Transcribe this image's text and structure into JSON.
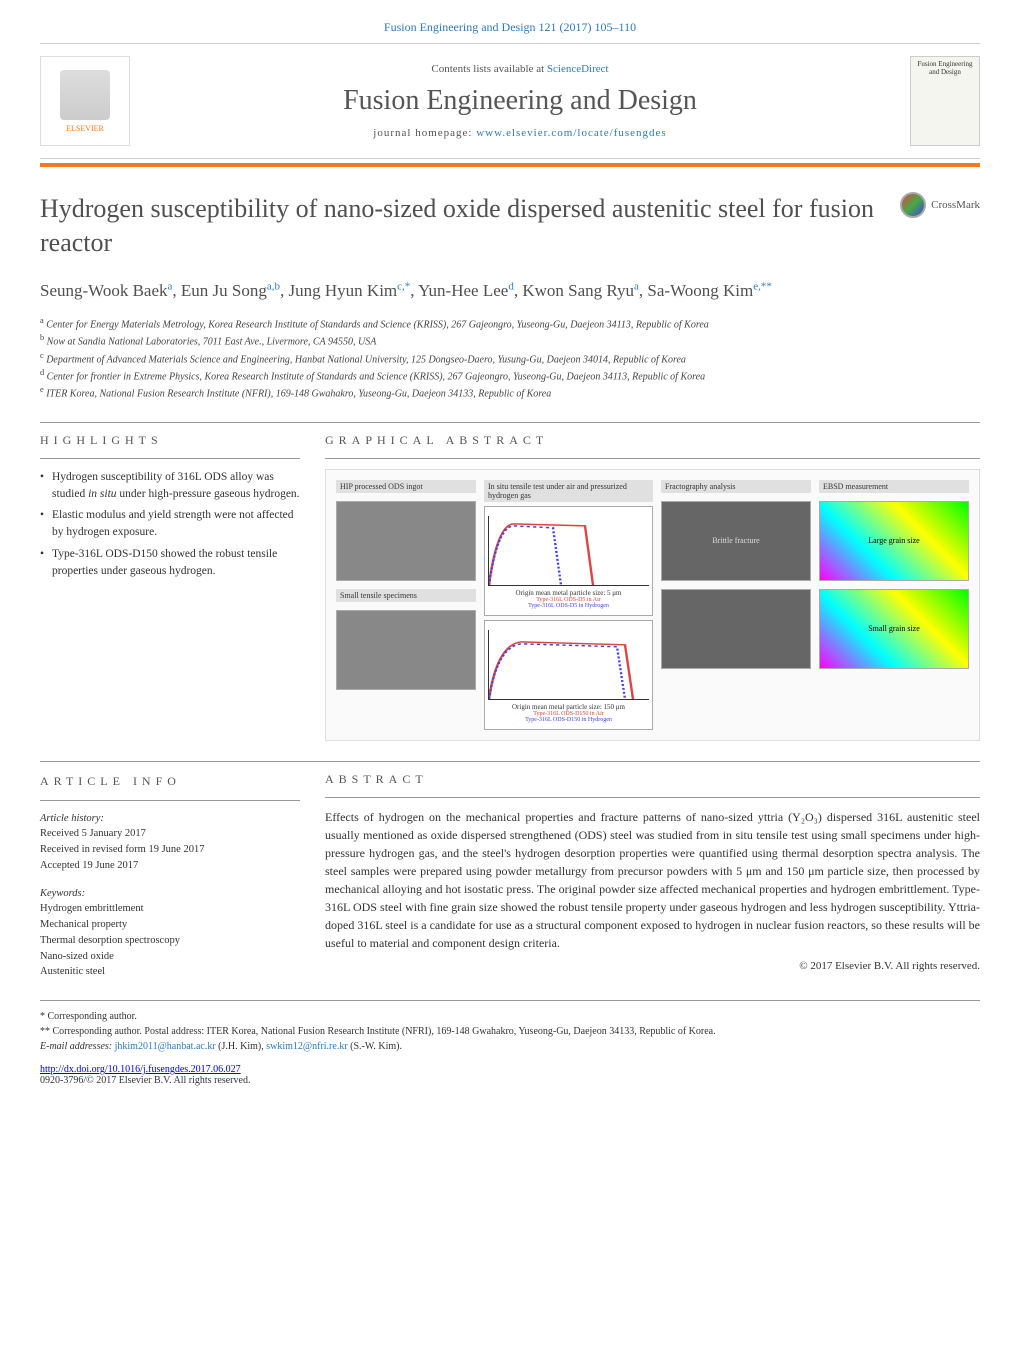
{
  "header": {
    "citation": "Fusion Engineering and Design 121 (2017) 105–110",
    "contents_text": "Contents lists available at ",
    "contents_link": "ScienceDirect",
    "journal_name": "Fusion Engineering and Design",
    "homepage_text": "journal homepage: ",
    "homepage_link": "www.elsevier.com/locate/fusengdes",
    "publisher": "ELSEVIER",
    "cover_title": "Fusion Engineering and Design"
  },
  "article": {
    "title": "Hydrogen susceptibility of nano-sized oxide dispersed austenitic steel for fusion reactor",
    "crossmark": "CrossMark",
    "authors_html": "Seung-Wook Baek<sup>a</sup>, Eun Ju Song<sup>a,b</sup>, Jung Hyun Kim<sup>c,*</sup>, Yun-Hee Lee<sup>d</sup>, Kwon Sang Ryu<sup>a</sup>, Sa-Woong Kim<sup>e,**</sup>"
  },
  "affiliations": {
    "a": "Center for Energy Materials Metrology, Korea Research Institute of Standards and Science (KRISS), 267 Gajeongro, Yuseong-Gu, Daejeon 34113, Republic of Korea",
    "b": "Now at Sandia National Laboratories, 7011 East Ave., Livermore, CA 94550, USA",
    "c": "Department of Advanced Materials Science and Engineering, Hanbat National University, 125 Dongseo-Daero, Yusung-Gu, Daejeon 34014, Republic of Korea",
    "d": "Center for frontier in Extreme Physics, Korea Research Institute of Standards and Science (KRISS), 267 Gajeongro, Yuseong-Gu, Daejeon 34113, Republic of Korea",
    "e": "ITER Korea, National Fusion Research Institute (NFRI), 169-148 Gwahakro, Yuseong-Gu, Daejeon 34133, Republic of Korea"
  },
  "highlights": {
    "heading": "HIGHLIGHTS",
    "items": [
      "Hydrogen susceptibility of 316L ODS alloy was studied in situ under high-pressure gaseous hydrogen.",
      "Elastic modulus and yield strength were not affected by hydrogen exposure.",
      "Type-316L ODS-D150 showed the robust tensile properties under gaseous hydrogen."
    ]
  },
  "graphical": {
    "heading": "GRAPHICAL ABSTRACT",
    "label_ingot": "HIP processed ODS ingot",
    "label_specimens": "Small tensile specimens",
    "label_insitu": "In situ tensile test under air and pressurized hydrogen gas",
    "label_fracto": "Fractography analysis",
    "label_ebsd": "EBSD measurement",
    "chart_a": {
      "title": "Origin mean metal particle size: 5 μm",
      "legend": [
        "Type-316L ODS-D5 in Air",
        "Type-316L ODS-D5 in Hydrogen"
      ],
      "tag": "a",
      "ylim": [
        0,
        700
      ],
      "xlim": [
        0,
        50
      ],
      "ylabel": "Stress (MPa)",
      "xlabel": "Strain (%)"
    },
    "chart_b": {
      "title": "Origin mean metal particle size: 150 μm",
      "legend": [
        "Type-316L ODS-D150 in Air",
        "Type-316L ODS-D150 in Hydrogen"
      ],
      "tag": "b",
      "ylim": [
        0,
        700
      ],
      "xlim": [
        0,
        50
      ],
      "ylabel": "Stress (MPa)",
      "xlabel": "Strain (%)"
    },
    "fracto_a": "Brittle fracture",
    "grain_large": "Large grain size",
    "grain_small": "Small grain size"
  },
  "info": {
    "heading": "ARTICLE INFO",
    "history_label": "Article history:",
    "received": "Received 5 January 2017",
    "revised": "Received in revised form 19 June 2017",
    "accepted": "Accepted 19 June 2017",
    "keywords_label": "Keywords:",
    "keywords": [
      "Hydrogen embrittlement",
      "Mechanical property",
      "Thermal desorption spectroscopy",
      "Nano-sized oxide",
      "Austenitic steel"
    ]
  },
  "abstract": {
    "heading": "ABSTRACT",
    "text": "Effects of hydrogen on the mechanical properties and fracture patterns of nano-sized yttria (Y₂O₃) dispersed 316L austenitic steel usually mentioned as oxide dispersed strengthened (ODS) steel was studied from in situ tensile test using small specimens under high-pressure hydrogen gas, and the steel's hydrogen desorption properties were quantified using thermal desorption spectra analysis. The steel samples were prepared using powder metallurgy from precursor powders with 5 μm and 150 μm particle size, then processed by mechanical alloying and hot isostatic press. The original powder size affected mechanical properties and hydrogen embrittlement. Type-316L ODS steel with fine grain size showed the robust tensile property under gaseous hydrogen and less hydrogen susceptibility. Yttria-doped 316L steel is a candidate for use as a structural component exposed to hydrogen in nuclear fusion reactors, so these results will be useful to material and component design criteria.",
    "copyright": "© 2017 Elsevier B.V. All rights reserved."
  },
  "footer": {
    "corr1": "* Corresponding author.",
    "corr2": "** Corresponding author. Postal address: ITER Korea, National Fusion Research Institute (NFRI), 169-148 Gwahakro, Yuseong-Gu, Daejeon 34133, Republic of Korea.",
    "emails_label": "E-mail addresses: ",
    "email1": "jhkim2011@hanbat.ac.kr",
    "email1_name": " (J.H. Kim), ",
    "email2": "swkim12@nfri.re.kr",
    "email2_name": " (S.-W. Kim).",
    "doi": "http://dx.doi.org/10.1016/j.fusengdes.2017.06.027",
    "issn": "0920-3796/© 2017 Elsevier B.V. All rights reserved."
  },
  "colors": {
    "link": "#2e7bb8",
    "accent": "#f47920",
    "text": "#333333",
    "heading": "#555555"
  }
}
